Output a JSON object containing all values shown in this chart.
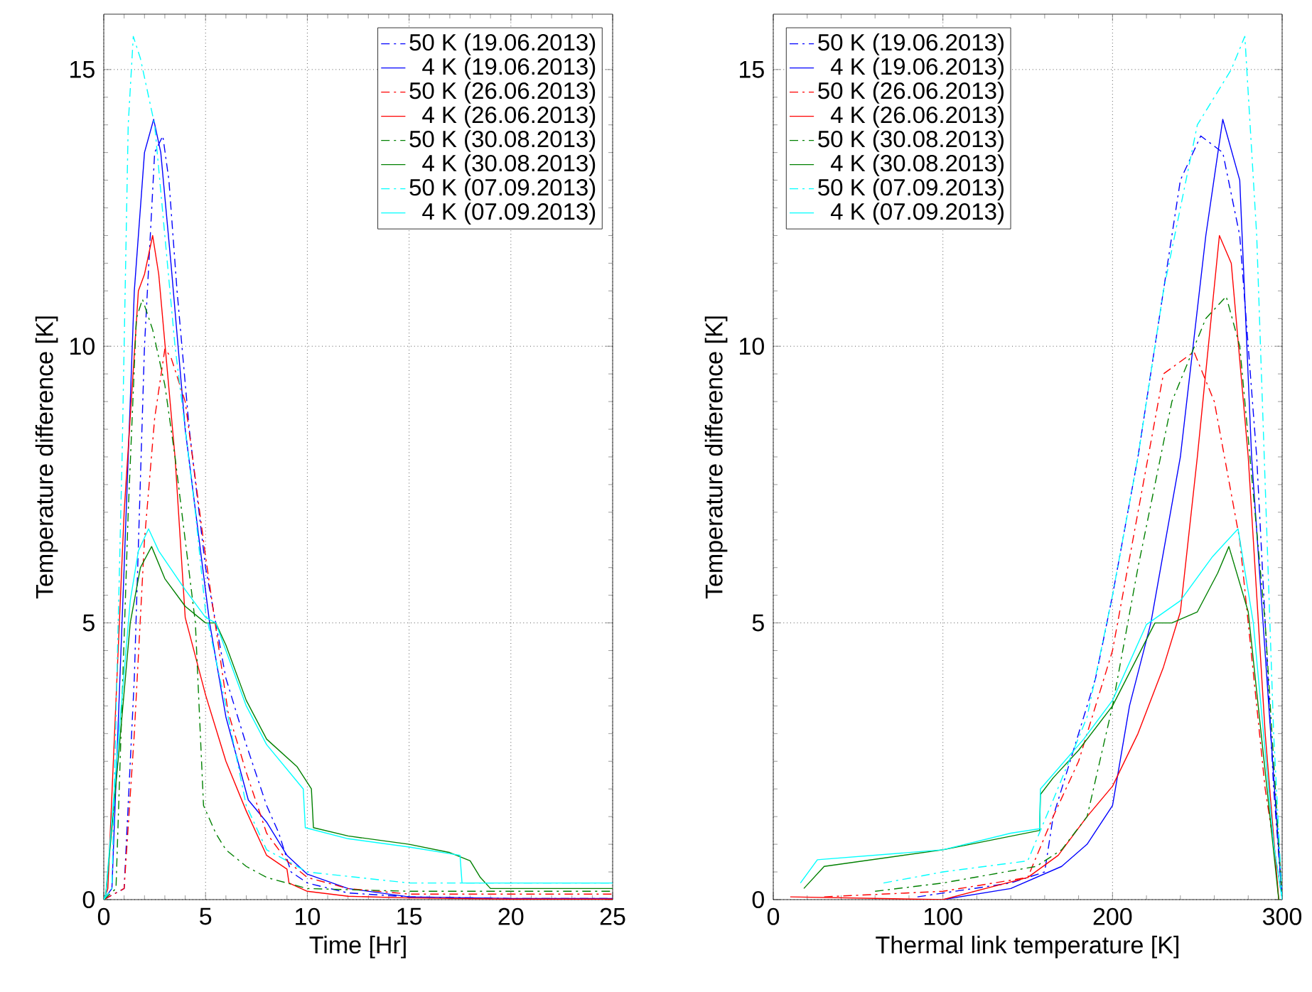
{
  "chart_data": [
    {
      "type": "line",
      "xlabel": "Time [Hr]",
      "ylabel": "Temperature difference [K]",
      "xlim": [
        0,
        25
      ],
      "ylim": [
        0,
        16
      ],
      "xticks": [
        0,
        5,
        10,
        15,
        20,
        25
      ],
      "yticks": [
        0,
        5,
        10,
        15
      ],
      "grid": true,
      "legend": "top right",
      "series": [
        {
          "name": "50 K (19.06.2013)",
          "color": "#0000ff",
          "line_style": "dashdot",
          "x": [
            0,
            1.0,
            1.5,
            2.0,
            2.5,
            2.9,
            3.2,
            3.6,
            4.2,
            5.0,
            6.0,
            7.0,
            8.0,
            8.6,
            9.2,
            10,
            12,
            15,
            20,
            25
          ],
          "values": [
            0,
            0.2,
            4,
            10,
            13.5,
            13.8,
            13.0,
            11,
            8.5,
            6,
            4,
            2.8,
            1.7,
            1.2,
            0.5,
            0.3,
            0.12,
            0.05,
            0.02,
            0.02
          ]
        },
        {
          "name": "4 K (19.06.2013)",
          "color": "#0000ff",
          "line_style": "solid",
          "x": [
            0,
            0.4,
            1.0,
            1.5,
            2.0,
            2.45,
            2.8,
            3.3,
            4.0,
            5.2,
            6.0,
            7.1,
            8.0,
            9.0,
            10,
            12,
            15,
            20,
            25
          ],
          "values": [
            0,
            0.2,
            6,
            11,
            13.5,
            14.1,
            13.5,
            11.5,
            8.5,
            5.0,
            3.3,
            1.8,
            1.4,
            0.8,
            0.46,
            0.2,
            0.05,
            0.02,
            0.02
          ]
        },
        {
          "name": "50 K (26.06.2013)",
          "color": "#ff0000",
          "line_style": "dashdot",
          "x": [
            0,
            1.0,
            1.5,
            2.0,
            2.5,
            3.0,
            3.3,
            4.0,
            5.0,
            6.1,
            7.0,
            8.0,
            9.0,
            10,
            12,
            15,
            20,
            25
          ],
          "values": [
            0,
            0.2,
            3,
            6.5,
            8.7,
            9.95,
            9.8,
            9.0,
            6.2,
            3.4,
            2.3,
            1.2,
            0.7,
            0.4,
            0.2,
            0.1,
            0.1,
            0.1
          ]
        },
        {
          "name": "4 K (26.06.2013)",
          "color": "#ff0000",
          "line_style": "solid",
          "x": [
            0,
            0.2,
            1.0,
            1.7,
            2.0,
            2.4,
            2.7,
            3.5,
            4.0,
            5.0,
            6.0,
            7.0,
            8.0,
            9.0,
            9.1,
            10,
            12,
            15,
            20,
            25
          ],
          "values": [
            0,
            0.2,
            7,
            11,
            11.3,
            12.0,
            11.3,
            8,
            5.1,
            3.7,
            2.5,
            1.6,
            0.8,
            0.55,
            0.3,
            0.15,
            0.06,
            0.03,
            0.01,
            0.01
          ]
        },
        {
          "name": "50 K (30.08.2013)",
          "color": "#008000",
          "line_style": "dashdot",
          "x": [
            0,
            0.6,
            1.2,
            1.6,
            1.9,
            2.4,
            3.0,
            3.5,
            4.5,
            4.9,
            5.5,
            6.0,
            7.0,
            8.0,
            10,
            15,
            20,
            25
          ],
          "values": [
            0,
            0.2,
            7,
            10.5,
            10.85,
            10.3,
            9.3,
            8,
            5,
            1.7,
            1.2,
            0.9,
            0.6,
            0.4,
            0.2,
            0.15,
            0.15,
            0.15
          ]
        },
        {
          "name": "4 K (30.08.2013)",
          "color": "#008000",
          "line_style": "solid",
          "x": [
            0,
            0.1,
            0.7,
            1.3,
            1.8,
            2.35,
            3.0,
            4.0,
            5.0,
            5.5,
            6.0,
            7.0,
            8.0,
            9.5,
            10.2,
            10.3,
            12,
            15,
            17,
            18.0,
            18.5,
            19,
            25
          ],
          "values": [
            0,
            0.1,
            2.5,
            5.0,
            6.0,
            6.38,
            5.8,
            5.3,
            5.0,
            5.0,
            4.6,
            3.6,
            2.9,
            2.4,
            2.0,
            1.3,
            1.15,
            1.0,
            0.85,
            0.7,
            0.4,
            0.2,
            0.2
          ]
        },
        {
          "name": "50 K (07.09.2013)",
          "color": "#00ffff",
          "line_style": "dashdot",
          "x": [
            0,
            0.4,
            0.9,
            1.2,
            1.45,
            1.8,
            2.5,
            3.5,
            4.5,
            5.0,
            6.0,
            7.0,
            8.0,
            10,
            15,
            20,
            25
          ],
          "values": [
            0,
            0.2,
            8,
            14,
            15.6,
            15.2,
            14,
            10,
            7,
            5.2,
            3.5,
            1.7,
            0.9,
            0.5,
            0.3,
            0.3,
            0.3
          ]
        },
        {
          "name": "4 K (07.09.2013)",
          "color": "#00ffff",
          "line_style": "solid",
          "x": [
            0,
            0.1,
            0.7,
            1.3,
            1.7,
            2.2,
            2.7,
            4.0,
            5.0,
            5.5,
            6.0,
            7.0,
            8.0,
            9.8,
            9.9,
            12,
            15,
            17.5,
            17.6,
            20,
            25
          ],
          "values": [
            0,
            0.1,
            2.8,
            5.4,
            6.3,
            6.7,
            6.3,
            5.6,
            5.1,
            5.0,
            4.5,
            3.5,
            2.8,
            2.0,
            1.3,
            1.1,
            0.95,
            0.8,
            0.3,
            0.3,
            0.3
          ]
        }
      ]
    },
    {
      "type": "line",
      "xlabel": "Thermal link temperature [K]",
      "ylabel": "Temperature difference [K]",
      "xlim": [
        0,
        300
      ],
      "ylim": [
        0,
        16
      ],
      "xticks": [
        0,
        100,
        200,
        300
      ],
      "yticks": [
        0,
        5,
        10,
        15
      ],
      "grid": true,
      "legend": "top left",
      "series": [
        {
          "name": "50 K (19.06.2013)",
          "color": "#0000ff",
          "line_style": "dashdot",
          "x": [
            85,
            140,
            160,
            165,
            175,
            190,
            200,
            215,
            230,
            240,
            252,
            265,
            275,
            285,
            295,
            300
          ],
          "values": [
            0.05,
            0.3,
            0.5,
            1.5,
            2.5,
            4.0,
            5.5,
            8,
            11,
            13,
            13.8,
            13.5,
            12,
            8,
            2,
            0
          ]
        },
        {
          "name": "4 K (19.06.2013)",
          "color": "#0000ff",
          "line_style": "solid",
          "x": [
            100,
            140,
            170,
            185,
            200,
            210,
            222.6,
            240,
            255,
            265,
            275,
            282,
            290,
            300
          ],
          "values": [
            0,
            0.2,
            0.6,
            1.0,
            1.7,
            3.5,
            5.0,
            8,
            12,
            14.1,
            13,
            8,
            null,
            0
          ]
        },
        {
          "name": "50 K (26.06.2013)",
          "color": "#ff0000",
          "line_style": "dashdot",
          "x": [
            30,
            100,
            150,
            165,
            180,
            200,
            215,
            230,
            248,
            260,
            275,
            290,
            300
          ],
          "values": [
            0.05,
            0.15,
            0.4,
            1.5,
            2.5,
            4.5,
            7,
            9.5,
            9.9,
            9,
            6.5,
            2,
            0
          ]
        },
        {
          "name": "4 K (26.06.2013)",
          "color": "#ff0000",
          "line_style": "solid",
          "x": [
            10,
            100,
            150,
            168,
            185,
            200,
            215,
            230,
            240,
            250,
            263,
            270,
            280,
            290,
            298
          ],
          "values": [
            0.05,
            0,
            0.4,
            0.8,
            1.5,
            2.05,
            3.0,
            4.2,
            5.2,
            8,
            12,
            11.5,
            8,
            3,
            0
          ]
        },
        {
          "name": "50 K (30.08.2013)",
          "color": "#008000",
          "line_style": "dashdot",
          "x": [
            60,
            100,
            155,
            170,
            185,
            200,
            215,
            235,
            255,
            267,
            275,
            290,
            300
          ],
          "values": [
            0.15,
            0.3,
            0.6,
            0.9,
            1.5,
            3.5,
            6,
            9,
            10.5,
            10.9,
            10,
            5,
            0
          ]
        },
        {
          "name": "4 K (30.08.2013)",
          "color": "#008000",
          "line_style": "solid",
          "x": [
            18,
            30,
            100,
            157,
            157.5,
            165,
            180,
            200,
            225,
            235,
            250,
            262,
            268.6,
            280,
            292,
            298
          ],
          "values": [
            0.2,
            0.6,
            0.9,
            1.25,
            1.9,
            2.2,
            2.7,
            3.5,
            5.0,
            5.0,
            5.2,
            5.9,
            6.38,
            5.2,
            null,
            0
          ]
        },
        {
          "name": "50 K (07.09.2013)",
          "color": "#00ffff",
          "line_style": "dashdot",
          "x": [
            65,
            100,
            150,
            165,
            185,
            200,
            215,
            230,
            250,
            270,
            278,
            285,
            295,
            300
          ],
          "values": [
            0.3,
            0.5,
            0.7,
            1.8,
            3.3,
            5.5,
            8,
            11,
            14,
            15,
            15.6,
            12,
            3,
            0
          ]
        },
        {
          "name": "4 K (07.09.2013)",
          "color": "#00ffff",
          "line_style": "solid",
          "x": [
            16,
            26,
            100,
            140,
            157,
            157.5,
            183,
            200,
            220,
            240,
            259,
            274,
            283,
            295,
            300
          ],
          "values": [
            0.3,
            0.72,
            0.9,
            1.2,
            1.28,
            2.0,
            2.9,
            3.6,
            4.97,
            5.4,
            6.2,
            6.7,
            5,
            1.0,
            0
          ]
        }
      ]
    }
  ]
}
